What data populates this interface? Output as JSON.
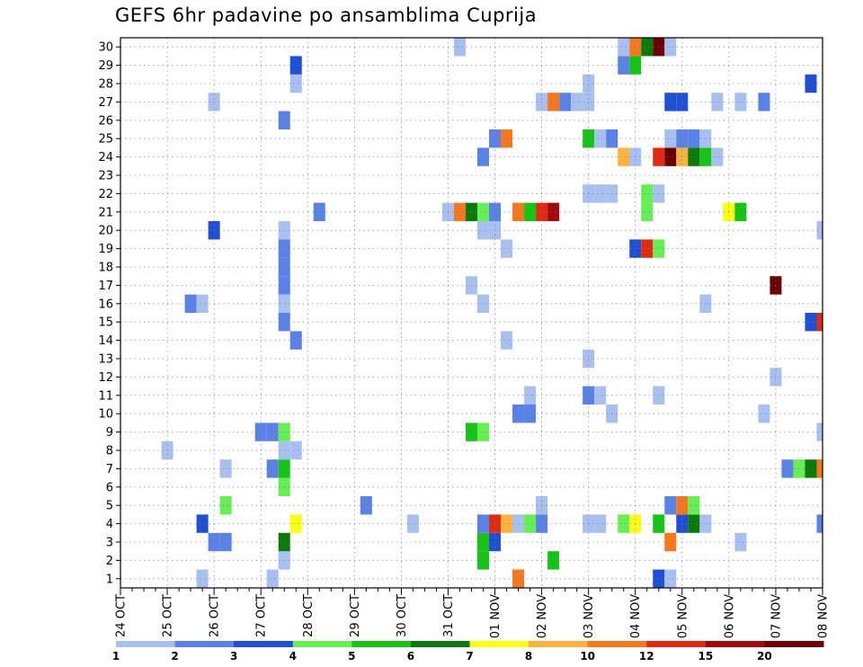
{
  "chart_data": {
    "type": "heatmap",
    "title": "GEFS 6hr padavine po ansamblima Cuprija",
    "x_tick_labels": [
      "24 OCT",
      "25 OCT",
      "26 OCT",
      "27 OCT",
      "28 OCT",
      "29 OCT",
      "30 OCT",
      "31 OCT",
      "01 NOV",
      "02 NOV",
      "03 NOV",
      "04 NOV",
      "05 NOV",
      "06 NOV",
      "07 NOV",
      "08 NOV"
    ],
    "y_tick_labels": [
      "1",
      "2",
      "3",
      "4",
      "5",
      "6",
      "7",
      "8",
      "9",
      "10",
      "11",
      "12",
      "13",
      "14",
      "15",
      "16",
      "17",
      "18",
      "19",
      "20",
      "21",
      "22",
      "23",
      "24",
      "25",
      "26",
      "27",
      "28",
      "29",
      "30"
    ],
    "ylim": [
      0,
      30
    ],
    "xlim_steps": [
      0,
      60
    ],
    "steps_per_day": 4,
    "grid": true,
    "legend": {
      "placement": "bottom",
      "labels": [
        "1",
        "2",
        "3",
        "4",
        "5",
        "6",
        "7",
        "8",
        "10",
        "12",
        "15",
        "20"
      ],
      "colors": [
        "#a8c0f0",
        "#5a82e6",
        "#1f4fd4",
        "#66ee55",
        "#16c416",
        "#0a7a0a",
        "#ffff14",
        "#ffb23c",
        "#f5781e",
        "#e02a14",
        "#a00a0a",
        "#6a0000"
      ]
    },
    "cells": [
      [
        1,
        7,
        0
      ],
      [
        1,
        13,
        0
      ],
      [
        1,
        34,
        8
      ],
      [
        1,
        46,
        2
      ],
      [
        1,
        47,
        0
      ],
      [
        2,
        14,
        0
      ],
      [
        2,
        31,
        4
      ],
      [
        2,
        37,
        4
      ],
      [
        3,
        8,
        1
      ],
      [
        3,
        9,
        1
      ],
      [
        3,
        14,
        5
      ],
      [
        3,
        31,
        4
      ],
      [
        3,
        32,
        2
      ],
      [
        3,
        47,
        8
      ],
      [
        3,
        53,
        0
      ],
      [
        4,
        7,
        2
      ],
      [
        4,
        15,
        6
      ],
      [
        4,
        25,
        0
      ],
      [
        4,
        31,
        1
      ],
      [
        4,
        32,
        9
      ],
      [
        4,
        33,
        7
      ],
      [
        4,
        34,
        0
      ],
      [
        4,
        35,
        3
      ],
      [
        4,
        36,
        1
      ],
      [
        4,
        40,
        0
      ],
      [
        4,
        41,
        0
      ],
      [
        4,
        43,
        3
      ],
      [
        4,
        44,
        6
      ],
      [
        4,
        46,
        4
      ],
      [
        4,
        48,
        2
      ],
      [
        4,
        49,
        5
      ],
      [
        4,
        50,
        0
      ],
      [
        4,
        60,
        1
      ],
      [
        5,
        9,
        3
      ],
      [
        5,
        21,
        1
      ],
      [
        5,
        36,
        0
      ],
      [
        5,
        47,
        1
      ],
      [
        5,
        48,
        8
      ],
      [
        5,
        49,
        3
      ],
      [
        6,
        14,
        3
      ],
      [
        7,
        9,
        0
      ],
      [
        7,
        13,
        1
      ],
      [
        7,
        14,
        4
      ],
      [
        7,
        57,
        1
      ],
      [
        7,
        58,
        3
      ],
      [
        7,
        59,
        5
      ],
      [
        7,
        60,
        8
      ],
      [
        8,
        4,
        0
      ],
      [
        8,
        14,
        0
      ],
      [
        8,
        15,
        0
      ],
      [
        9,
        12,
        1
      ],
      [
        9,
        13,
        1
      ],
      [
        9,
        14,
        3
      ],
      [
        9,
        30,
        4
      ],
      [
        9,
        31,
        3
      ],
      [
        9,
        60,
        0
      ],
      [
        10,
        34,
        1
      ],
      [
        10,
        35,
        1
      ],
      [
        10,
        42,
        0
      ],
      [
        10,
        55,
        0
      ],
      [
        11,
        35,
        0
      ],
      [
        11,
        40,
        1
      ],
      [
        11,
        41,
        0
      ],
      [
        11,
        46,
        0
      ],
      [
        12,
        56,
        0
      ],
      [
        13,
        40,
        0
      ],
      [
        14,
        15,
        1
      ],
      [
        14,
        33,
        0
      ],
      [
        15,
        14,
        1
      ],
      [
        15,
        59,
        2
      ],
      [
        15,
        60,
        9
      ],
      [
        16,
        6,
        1
      ],
      [
        16,
        7,
        0
      ],
      [
        16,
        14,
        0
      ],
      [
        16,
        31,
        0
      ],
      [
        16,
        50,
        0
      ],
      [
        17,
        14,
        1
      ],
      [
        17,
        30,
        0
      ],
      [
        17,
        56,
        11
      ],
      [
        18,
        14,
        1
      ],
      [
        19,
        14,
        1
      ],
      [
        19,
        33,
        0
      ],
      [
        19,
        44,
        2
      ],
      [
        19,
        45,
        9
      ],
      [
        19,
        46,
        3
      ],
      [
        20,
        8,
        2
      ],
      [
        20,
        14,
        0
      ],
      [
        20,
        31,
        0
      ],
      [
        20,
        32,
        0
      ],
      [
        20,
        60,
        0
      ],
      [
        21,
        17,
        1
      ],
      [
        21,
        28,
        0
      ],
      [
        21,
        29,
        8
      ],
      [
        21,
        30,
        5
      ],
      [
        21,
        31,
        3
      ],
      [
        21,
        32,
        1
      ],
      [
        21,
        34,
        8
      ],
      [
        21,
        35,
        4
      ],
      [
        21,
        36,
        9
      ],
      [
        21,
        37,
        10
      ],
      [
        21,
        45,
        3
      ],
      [
        21,
        52,
        6
      ],
      [
        21,
        53,
        4
      ],
      [
        22,
        40,
        0
      ],
      [
        22,
        41,
        0
      ],
      [
        22,
        42,
        0
      ],
      [
        22,
        45,
        3
      ],
      [
        22,
        46,
        0
      ],
      [
        24,
        31,
        1
      ],
      [
        24,
        43,
        7
      ],
      [
        24,
        44,
        0
      ],
      [
        24,
        46,
        9
      ],
      [
        24,
        47,
        11
      ],
      [
        24,
        48,
        7
      ],
      [
        24,
        49,
        5
      ],
      [
        24,
        50,
        4
      ],
      [
        24,
        51,
        0
      ],
      [
        25,
        32,
        1
      ],
      [
        25,
        33,
        8
      ],
      [
        25,
        40,
        4
      ],
      [
        25,
        41,
        0
      ],
      [
        25,
        42,
        1
      ],
      [
        25,
        47,
        0
      ],
      [
        25,
        48,
        1
      ],
      [
        25,
        49,
        1
      ],
      [
        25,
        50,
        0
      ],
      [
        26,
        14,
        1
      ],
      [
        27,
        8,
        0
      ],
      [
        27,
        36,
        0
      ],
      [
        27,
        37,
        8
      ],
      [
        27,
        38,
        1
      ],
      [
        27,
        39,
        0
      ],
      [
        27,
        40,
        0
      ],
      [
        27,
        47,
        2
      ],
      [
        27,
        48,
        2
      ],
      [
        27,
        51,
        0
      ],
      [
        27,
        53,
        0
      ],
      [
        27,
        55,
        1
      ],
      [
        28,
        15,
        0
      ],
      [
        28,
        40,
        0
      ],
      [
        28,
        59,
        2
      ],
      [
        29,
        15,
        2
      ],
      [
        29,
        43,
        1
      ],
      [
        29,
        44,
        4
      ],
      [
        30,
        29,
        0
      ],
      [
        30,
        43,
        0
      ],
      [
        30,
        44,
        8
      ],
      [
        30,
        45,
        5
      ],
      [
        30,
        46,
        11
      ],
      [
        30,
        47,
        0
      ]
    ]
  }
}
